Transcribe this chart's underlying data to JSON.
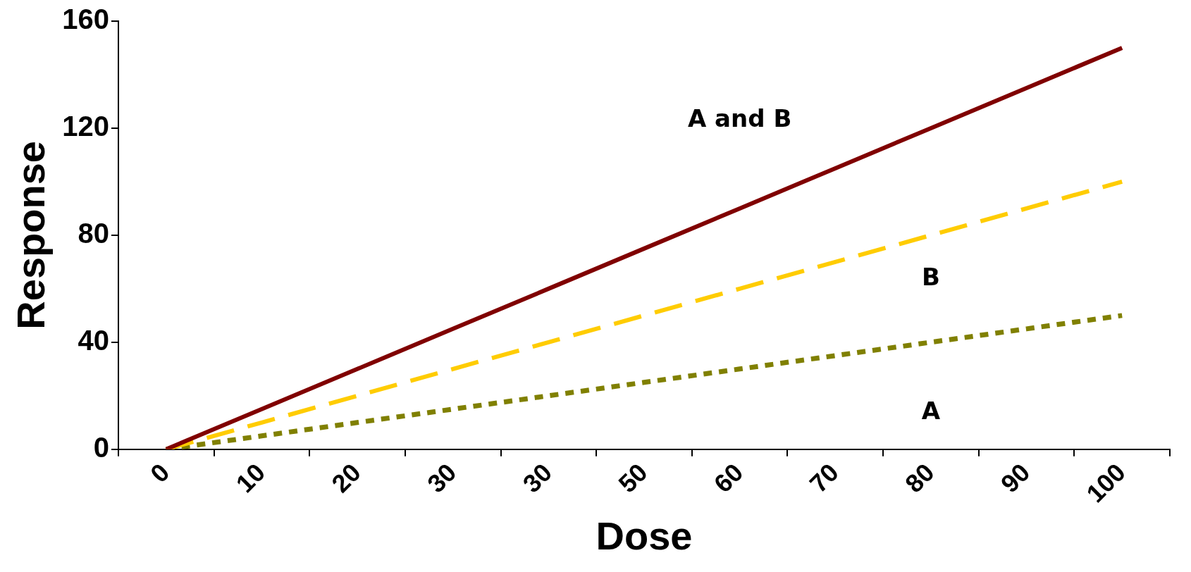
{
  "chart_data": {
    "type": "line",
    "xlabel": "Dose",
    "ylabel": "Response",
    "categories": [
      "0",
      "10",
      "20",
      "30",
      "30",
      "50",
      "60",
      "70",
      "80",
      "90",
      "100"
    ],
    "series": [
      {
        "name": "A and B",
        "color": "#800000",
        "line_style": "solid",
        "values": [
          0,
          15,
          30,
          45,
          60,
          75,
          90,
          105,
          120,
          135,
          150
        ]
      },
      {
        "name": "B",
        "color": "#ffcc00",
        "line_style": "dashed",
        "values": [
          0,
          10,
          20,
          30,
          40,
          50,
          60,
          70,
          80,
          90,
          100
        ]
      },
      {
        "name": "A",
        "color": "#808000",
        "line_style": "dotted",
        "values": [
          0,
          5,
          10,
          15,
          20,
          25,
          30,
          35,
          40,
          45,
          50
        ]
      }
    ],
    "ylim": [
      0,
      160
    ],
    "yticks": [
      0,
      40,
      80,
      120,
      160
    ],
    "grid": false,
    "legend": false,
    "marker": "none"
  }
}
